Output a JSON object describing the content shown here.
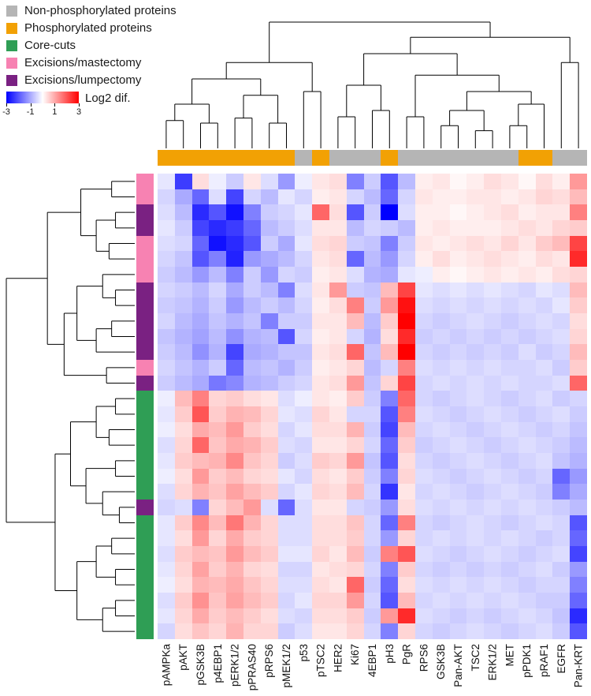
{
  "legend": {
    "items": [
      {
        "label": "Non-phosphorylated proteins",
        "color": "#b5b5b5",
        "key": "nonphospho"
      },
      {
        "label": "Phosphorylated proteins",
        "color": "#f2a104",
        "key": "phospho"
      },
      {
        "label": "Core-cuts",
        "color": "#2f9e55",
        "key": "core"
      },
      {
        "label": "Excisions/mastectomy",
        "color": "#f782b2",
        "key": "mastectomy"
      },
      {
        "label": "Excisions/lumpectomy",
        "color": "#7a2182",
        "key": "lumpectomy"
      }
    ],
    "colorbar": {
      "title": "Log2 dif.",
      "ticks": [
        "-3",
        "-1",
        "1",
        "3"
      ],
      "min": -3,
      "max": 3
    }
  },
  "chart_data": {
    "type": "heatmap",
    "title": "",
    "value_range": [
      -3,
      3
    ],
    "colormap": {
      "negative": "#0000ff",
      "mid": "#ffffff",
      "positive": "#ff0000"
    },
    "group_colors": {
      "nonphospho": "#b5b5b5",
      "phospho": "#f2a104",
      "core": "#2f9e55",
      "mastectomy": "#f782b2",
      "lumpectomy": "#7a2182"
    },
    "columns": [
      "pAMPKa",
      "pAKT",
      "pGSK3B",
      "p4EBP1",
      "pERK1/2",
      "pPRAS40",
      "pRPS6",
      "pMEK1/2",
      "p53",
      "pTSC2",
      "HER2",
      "Ki67",
      "4EBP1",
      "pH3",
      "PgR",
      "RPS6",
      "GSK3B",
      "Pan-AKT",
      "TSC2",
      "ERK1/2",
      "MET",
      "pPDK1",
      "pRAF1",
      "EGFR",
      "Pan-KRT"
    ],
    "column_groups": [
      "phospho",
      "phospho",
      "phospho",
      "phospho",
      "phospho",
      "phospho",
      "phospho",
      "phospho",
      "nonphospho",
      "phospho",
      "nonphospho",
      "nonphospho",
      "nonphospho",
      "phospho",
      "nonphospho",
      "nonphospho",
      "nonphospho",
      "nonphospho",
      "nonphospho",
      "nonphospho",
      "nonphospho",
      "phospho",
      "phospho",
      "nonphospho",
      "nonphospho"
    ],
    "row_groups": [
      "mastectomy",
      "mastectomy",
      "lumpectomy",
      "lumpectomy",
      "mastectomy",
      "mastectomy",
      "mastectomy",
      "lumpectomy",
      "lumpectomy",
      "lumpectomy",
      "lumpectomy",
      "lumpectomy",
      "mastectomy",
      "lumpectomy",
      "core",
      "core",
      "core",
      "core",
      "core",
      "core",
      "core",
      "lumpectomy",
      "core",
      "core",
      "core",
      "core",
      "core",
      "core",
      "core",
      "core"
    ],
    "values": [
      [
        -0.3,
        -2.3,
        0.4,
        -0.2,
        -0.6,
        0.3,
        -0.4,
        -1.2,
        -0.2,
        0.3,
        0.4,
        -1.5,
        -0.6,
        -2.0,
        -0.8,
        0.2,
        0.3,
        0.1,
        0.2,
        0.4,
        0.3,
        0.1,
        0.4,
        0.2,
        1.2
      ],
      [
        -0.5,
        -1.0,
        -1.8,
        -0.4,
        -2.2,
        -0.5,
        -0.8,
        -0.3,
        -0.5,
        0.2,
        0.3,
        -0.5,
        -0.8,
        -1.8,
        -0.5,
        0.3,
        0.2,
        0.2,
        0.3,
        0.3,
        0.2,
        0.3,
        0.5,
        0.4,
        0.8
      ],
      [
        -0.4,
        -0.8,
        -2.5,
        -2.0,
        -2.8,
        -1.5,
        -0.6,
        -0.5,
        -0.3,
        1.8,
        0.4,
        -2.0,
        -0.6,
        -3.0,
        -0.4,
        0.2,
        0.2,
        0.1,
        0.2,
        0.3,
        0.4,
        0.2,
        0.3,
        0.3,
        1.5
      ],
      [
        -0.3,
        -0.6,
        -2.2,
        -2.5,
        -2.3,
        -1.8,
        -0.8,
        -0.6,
        -0.4,
        0.3,
        0.3,
        -0.8,
        -0.5,
        -0.6,
        -0.8,
        0.2,
        0.3,
        0.2,
        0.2,
        0.2,
        0.3,
        0.4,
        0.3,
        0.5,
        0.6
      ],
      [
        -0.4,
        -0.5,
        -1.8,
        -2.8,
        -2.5,
        -2.0,
        -0.6,
        -1.0,
        -0.3,
        0.4,
        0.5,
        -0.6,
        -0.7,
        -1.5,
        -0.6,
        0.3,
        0.2,
        0.3,
        0.4,
        0.3,
        0.5,
        0.3,
        0.6,
        0.8,
        2.2
      ],
      [
        -0.5,
        -0.7,
        -2.0,
        -1.5,
        -2.6,
        -1.2,
        -1.0,
        -0.8,
        -0.5,
        0.3,
        0.4,
        -1.8,
        -0.8,
        -1.2,
        -0.5,
        0.2,
        0.4,
        0.2,
        0.3,
        0.4,
        0.3,
        0.2,
        0.4,
        0.3,
        2.5
      ],
      [
        -0.6,
        -0.8,
        -1.2,
        -0.8,
        -1.5,
        -0.6,
        -1.2,
        -0.5,
        -0.6,
        0.2,
        0.3,
        -0.4,
        -0.9,
        -1.0,
        -0.3,
        -0.2,
        0.2,
        0.1,
        0.2,
        0.3,
        0.2,
        0.3,
        0.2,
        0.4,
        0.5
      ],
      [
        -0.5,
        -0.6,
        -0.8,
        -0.5,
        -1.0,
        -0.6,
        -0.8,
        -1.5,
        -0.4,
        0.3,
        1.2,
        -0.6,
        -0.7,
        0.8,
        2.2,
        -0.3,
        -0.4,
        -0.3,
        -0.4,
        -0.3,
        -0.4,
        -0.5,
        -0.3,
        -0.4,
        0.8
      ],
      [
        -0.6,
        -0.7,
        -0.9,
        -0.6,
        -1.2,
        -0.8,
        -0.6,
        -0.8,
        -0.5,
        0.2,
        0.4,
        1.5,
        -0.6,
        1.2,
        2.8,
        -0.4,
        -0.5,
        -0.4,
        -0.5,
        -0.4,
        -0.5,
        -0.4,
        -0.5,
        -0.3,
        0.6
      ],
      [
        -0.5,
        -0.8,
        -1.0,
        -0.7,
        -0.9,
        -0.7,
        -1.5,
        -0.6,
        -0.6,
        0.3,
        0.3,
        0.8,
        -0.8,
        0.6,
        3.0,
        -0.5,
        -0.6,
        -0.5,
        -0.4,
        -0.5,
        -0.6,
        -0.5,
        -0.4,
        -0.5,
        0.4
      ],
      [
        -0.7,
        -0.9,
        -1.1,
        -0.8,
        -1.3,
        -0.9,
        -0.8,
        -2.0,
        -0.5,
        0.2,
        0.3,
        -0.5,
        -0.9,
        0.4,
        2.5,
        -0.6,
        -0.5,
        -0.6,
        -0.5,
        -0.6,
        -0.5,
        -0.6,
        -0.5,
        -0.4,
        0.5
      ],
      [
        -0.6,
        -0.8,
        -1.3,
        -0.9,
        -2.2,
        -1.0,
        -0.9,
        -0.7,
        -0.7,
        0.3,
        0.4,
        1.8,
        -0.7,
        0.8,
        3.0,
        -0.5,
        -0.6,
        -0.5,
        -0.6,
        -0.5,
        -0.6,
        -0.4,
        -0.6,
        -0.5,
        0.8
      ],
      [
        -0.5,
        -0.7,
        -0.9,
        -0.6,
        -1.8,
        -0.8,
        -0.7,
        -0.9,
        -0.6,
        0.2,
        0.3,
        0.5,
        -0.8,
        -0.5,
        1.5,
        -0.4,
        -0.5,
        -0.4,
        -0.5,
        -0.4,
        -0.5,
        -0.5,
        -0.4,
        -0.6,
        0.6
      ],
      [
        -0.6,
        -0.8,
        -1.0,
        -1.6,
        -1.4,
        -0.9,
        -0.8,
        -0.6,
        -0.5,
        0.3,
        0.4,
        1.2,
        -0.7,
        0.5,
        2.2,
        -0.5,
        -0.4,
        -0.5,
        -0.4,
        -0.5,
        -0.4,
        -0.5,
        -0.5,
        -0.4,
        1.8
      ],
      [
        -0.2,
        0.8,
        1.5,
        0.5,
        0.6,
        0.4,
        0.3,
        -0.4,
        -0.2,
        0.3,
        0.2,
        0.6,
        -0.6,
        -1.5,
        1.8,
        -0.5,
        -0.6,
        -0.5,
        -0.4,
        -0.5,
        -0.6,
        -0.5,
        -0.4,
        -0.6,
        -0.5
      ],
      [
        -0.3,
        0.6,
        2.0,
        0.6,
        0.9,
        0.8,
        0.5,
        -0.3,
        -0.4,
        0.5,
        0.3,
        -0.5,
        -0.5,
        -2.0,
        1.5,
        -0.4,
        -0.5,
        -0.6,
        -0.5,
        -0.4,
        -0.5,
        -0.6,
        -0.5,
        -0.4,
        -0.6
      ],
      [
        -0.2,
        0.4,
        1.0,
        0.8,
        1.2,
        0.6,
        0.4,
        -0.5,
        -0.3,
        0.4,
        0.4,
        0.9,
        -0.6,
        -2.2,
        0.8,
        -0.5,
        -0.4,
        -0.5,
        -0.6,
        -0.5,
        -0.4,
        -0.5,
        -0.6,
        -0.5,
        -0.7
      ],
      [
        -0.4,
        0.5,
        1.8,
        0.7,
        1.0,
        0.9,
        0.6,
        -0.4,
        -0.5,
        0.3,
        0.3,
        0.5,
        -0.5,
        -1.8,
        0.6,
        -0.6,
        -0.5,
        -0.4,
        -0.5,
        -0.6,
        -0.5,
        -0.4,
        -0.5,
        -0.6,
        -0.8
      ],
      [
        -0.3,
        0.6,
        0.8,
        0.9,
        1.4,
        0.7,
        0.5,
        -0.6,
        -0.4,
        0.6,
        0.5,
        1.2,
        -0.7,
        -2.0,
        0.4,
        -0.5,
        -0.6,
        -0.5,
        -0.4,
        -0.5,
        -0.6,
        -0.5,
        -0.4,
        -0.7,
        -0.9
      ],
      [
        -0.2,
        0.4,
        1.2,
        0.6,
        0.8,
        0.5,
        0.4,
        -0.3,
        -0.5,
        0.4,
        0.3,
        0.6,
        -0.6,
        -1.5,
        0.5,
        -0.4,
        -0.5,
        -0.6,
        -0.5,
        -0.4,
        -0.5,
        -0.6,
        -0.5,
        -1.8,
        -1.2
      ],
      [
        -0.4,
        0.5,
        0.9,
        0.7,
        1.1,
        0.8,
        0.6,
        -0.5,
        -0.3,
        0.5,
        0.4,
        0.8,
        -0.5,
        -2.4,
        0.3,
        -0.5,
        -0.4,
        -0.5,
        -0.6,
        -0.5,
        -0.4,
        -0.5,
        -0.6,
        -1.5,
        -1.0
      ],
      [
        -0.5,
        -0.4,
        -1.5,
        0.5,
        0.8,
        1.2,
        -0.4,
        -1.8,
        -0.4,
        0.3,
        0.3,
        -0.5,
        -0.6,
        -1.2,
        0.4,
        -0.4,
        -0.5,
        -0.4,
        -0.5,
        -0.4,
        -0.5,
        -0.4,
        -0.5,
        -0.6,
        -0.8
      ],
      [
        -0.3,
        0.6,
        1.4,
        0.8,
        1.6,
        0.9,
        0.5,
        -0.4,
        -0.4,
        0.4,
        0.4,
        0.7,
        -0.5,
        -1.8,
        1.5,
        -0.5,
        -0.6,
        -0.5,
        -0.4,
        -0.5,
        -0.6,
        -0.5,
        -0.4,
        -0.5,
        -2.0
      ],
      [
        -0.3,
        0.4,
        1.2,
        0.5,
        1.0,
        0.6,
        0.5,
        -0.4,
        -0.4,
        0.4,
        0.4,
        0.6,
        -0.5,
        -1.2,
        0.5,
        -0.5,
        -0.4,
        -0.5,
        -0.4,
        -0.5,
        -0.4,
        -0.5,
        -0.6,
        -0.5,
        -1.8
      ],
      [
        -0.4,
        0.6,
        0.8,
        0.7,
        1.2,
        0.8,
        0.6,
        -0.3,
        -0.3,
        0.5,
        0.3,
        0.8,
        -0.6,
        1.5,
        2.0,
        -0.4,
        -0.5,
        -0.6,
        -0.5,
        -0.4,
        -0.5,
        -0.6,
        -0.5,
        -0.4,
        -2.2
      ],
      [
        -0.3,
        0.5,
        1.1,
        0.6,
        0.9,
        0.5,
        0.4,
        -0.5,
        -0.5,
        0.3,
        0.4,
        0.5,
        -0.5,
        -1.5,
        0.6,
        -0.5,
        -0.6,
        -0.5,
        -0.6,
        -0.5,
        -0.6,
        -0.5,
        -0.4,
        -0.6,
        -1.2
      ],
      [
        -0.2,
        0.4,
        0.9,
        0.8,
        1.0,
        0.7,
        0.5,
        -0.4,
        -0.4,
        0.4,
        0.3,
        1.8,
        -0.6,
        -1.8,
        0.4,
        -0.4,
        -0.5,
        -0.4,
        -0.5,
        -0.4,
        -0.5,
        -0.6,
        -0.5,
        -0.5,
        -1.5
      ],
      [
        -0.4,
        0.6,
        1.3,
        0.7,
        1.1,
        0.8,
        0.6,
        -0.5,
        -0.3,
        0.5,
        0.5,
        1.2,
        -0.5,
        -2.0,
        0.8,
        -0.5,
        -0.4,
        -0.5,
        -0.4,
        -0.5,
        -0.4,
        -0.5,
        -0.6,
        -0.6,
        -1.8
      ],
      [
        -0.3,
        0.5,
        1.0,
        0.6,
        0.8,
        0.6,
        0.4,
        -0.4,
        -0.5,
        0.4,
        0.4,
        0.6,
        -0.6,
        1.2,
        2.5,
        -0.4,
        -0.5,
        -0.6,
        -0.5,
        -0.6,
        -0.5,
        -0.4,
        -0.5,
        -0.7,
        -2.5
      ],
      [
        -0.5,
        0.4,
        0.7,
        0.5,
        0.9,
        0.5,
        0.5,
        -0.6,
        -0.4,
        0.3,
        0.3,
        0.5,
        -0.5,
        -1.5,
        0.5,
        -0.5,
        -0.6,
        -0.5,
        -0.4,
        -0.5,
        -0.6,
        -0.5,
        -0.4,
        -0.6,
        -2.0
      ]
    ],
    "col_dendrogram": [
      [
        [
          [
            [
              0,
              1,
              0.22
            ],
            [
              2,
              3,
              0.2
            ],
            0.35
          ],
          [
            [
              4,
              5,
              0.24
            ],
            [
              6,
              7,
              0.2
            ],
            0.42
          ],
          0.55
        ],
        [
          8,
          9,
          0.45
        ],
        0.68
      ],
      [
        [
          [
            [
              10,
              11,
              0.25
            ],
            [
              12,
              13,
              0.3
            ],
            0.5
          ],
          [
            [
              14,
              15,
              0.25
            ],
            [
              [
                [
                  16,
                  17,
                  0.18
                ],
                [
                  18,
                  19,
                  0.14
                ],
                0.3
              ],
              [
                [
                  20,
                  21,
                  0.18
                ],
                22,
                0.35
              ],
              0.45
            ],
            0.58
          ],
          0.75
        ],
        [
          23,
          24,
          0.68
        ],
        0.88
      ],
      1.0
    ],
    "row_dendrogram": [
      [
        [
          [
            0,
            1,
            0.18
          ],
          [
            [
              2,
              3,
              0.15
            ],
            [
              4,
              5,
              0.2
            ],
            0.3
          ],
          0.42
        ],
        [
          [
            [
              6,
              [
                7,
                8,
                0.15
              ],
              0.25
            ],
            [
              [
                9,
                10,
                0.18
              ],
              11,
              0.3
            ],
            0.45
          ],
          [
            12,
            13,
            0.22
          ],
          0.55
        ],
        0.68
      ],
      [
        [
          [
            [
              14,
              15,
              0.15
            ],
            [
              16,
              17,
              0.2
            ],
            0.3
          ],
          [
            [
              18,
              19,
              0.15
            ],
            [
              20,
              [
                21,
                22,
                0.12
              ],
              0.25
            ],
            0.38
          ],
          0.5
        ],
        [
          [
            [
              23,
              24,
              0.18
            ],
            [
              25,
              26,
              0.15
            ],
            0.3
          ],
          [
            [
              27,
              28,
              0.15
            ],
            29,
            0.25
          ],
          0.45
        ],
        0.62
      ],
      1.0
    ]
  }
}
